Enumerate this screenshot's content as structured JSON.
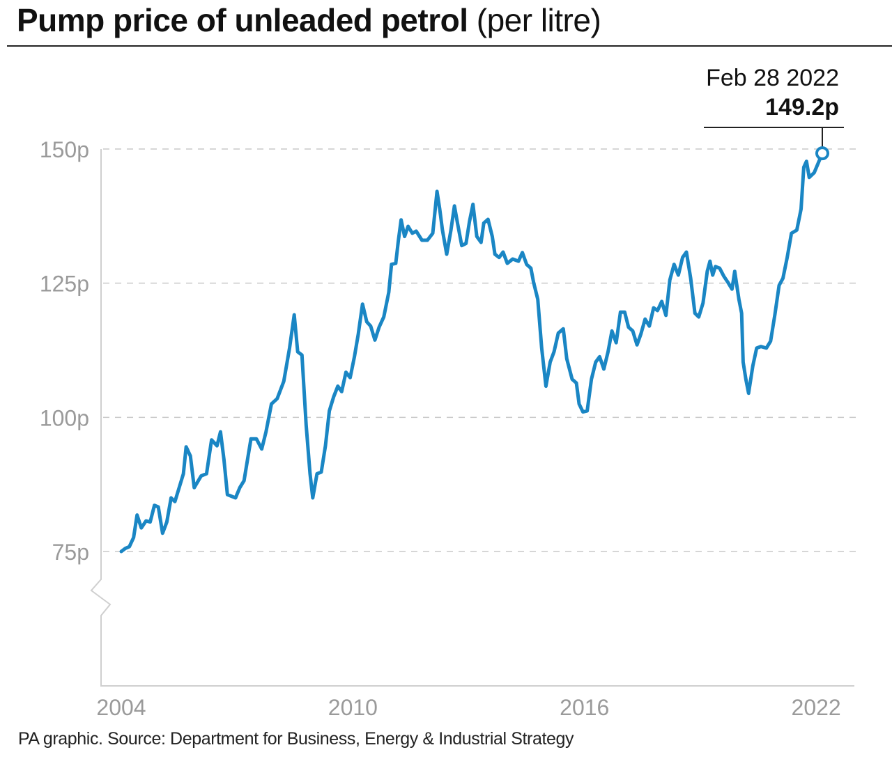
{
  "title": {
    "main": "Pump price of unleaded petrol",
    "sub": "(per litre)"
  },
  "source": "PA graphic. Source: Department for Business, Energy & Industrial Strategy",
  "chart_data": {
    "type": "line",
    "title": "Pump price of unleaded petrol (per litre)",
    "xlabel": "",
    "ylabel": "",
    "xlim": [
      2004,
      2022.16
    ],
    "ylim": [
      50,
      150
    ],
    "y_axis_break": true,
    "grid": "horizontal dashed",
    "line_color": "#1a86c4",
    "x_ticks": [
      2004,
      2010,
      2016,
      2022
    ],
    "x_tick_labels": [
      "2004",
      "2010",
      "2016",
      "2022"
    ],
    "y_ticks": [
      75,
      100,
      125,
      150
    ],
    "y_tick_labels": [
      "75p",
      "100p",
      "125p",
      "150p"
    ],
    "annotation": {
      "date": "Feb 28 2022",
      "value_label": "149.2p",
      "x": 2022.16,
      "y": 149.2
    },
    "x": [
      2004.0,
      2004.11,
      2004.21,
      2004.32,
      2004.41,
      2004.52,
      2004.64,
      2004.75,
      2004.86,
      2004.96,
      2005.07,
      2005.18,
      2005.29,
      2005.39,
      2005.5,
      2005.61,
      2005.68,
      2005.79,
      2005.89,
      2006.07,
      2006.21,
      2006.34,
      2006.48,
      2006.57,
      2006.66,
      2006.75,
      2006.96,
      2007.07,
      2007.18,
      2007.36,
      2007.5,
      2007.64,
      2007.75,
      2007.89,
      2008.04,
      2008.21,
      2008.36,
      2008.48,
      2008.57,
      2008.68,
      2008.79,
      2008.89,
      2008.96,
      2009.07,
      2009.18,
      2009.29,
      2009.39,
      2009.5,
      2009.61,
      2009.71,
      2009.82,
      2009.93,
      2010.04,
      2010.14,
      2010.25,
      2010.36,
      2010.46,
      2010.57,
      2010.68,
      2010.8,
      2010.93,
      2011.0,
      2011.11,
      2011.18,
      2011.25,
      2011.34,
      2011.43,
      2011.54,
      2011.64,
      2011.79,
      2011.93,
      2012.07,
      2012.18,
      2012.25,
      2012.32,
      2012.43,
      2012.54,
      2012.63,
      2012.71,
      2012.82,
      2012.93,
      2013.02,
      2013.11,
      2013.21,
      2013.32,
      2013.39,
      2013.5,
      2013.61,
      2013.68,
      2013.79,
      2013.89,
      2014.0,
      2014.14,
      2014.29,
      2014.39,
      2014.5,
      2014.61,
      2014.68,
      2014.79,
      2014.89,
      2015.0,
      2015.11,
      2015.21,
      2015.32,
      2015.45,
      2015.54,
      2015.68,
      2015.79,
      2015.86,
      2015.96,
      2016.07,
      2016.18,
      2016.29,
      2016.39,
      2016.5,
      2016.61,
      2016.71,
      2016.82,
      2016.93,
      2017.04,
      2017.14,
      2017.25,
      2017.36,
      2017.46,
      2017.57,
      2017.68,
      2017.79,
      2017.89,
      2018.0,
      2018.11,
      2018.21,
      2018.32,
      2018.43,
      2018.54,
      2018.64,
      2018.75,
      2018.86,
      2018.96,
      2019.07,
      2019.18,
      2019.25,
      2019.32,
      2019.39,
      2019.5,
      2019.61,
      2019.71,
      2019.82,
      2019.89,
      2020.0,
      2020.07,
      2020.11,
      2020.18,
      2020.25,
      2020.36,
      2020.46,
      2020.57,
      2020.71,
      2020.82,
      2020.93,
      2021.04,
      2021.14,
      2021.25,
      2021.36,
      2021.5,
      2021.61,
      2021.68,
      2021.75,
      2021.82,
      2021.95,
      2022.16
    ],
    "y": [
      75.0,
      75.6,
      75.9,
      77.6,
      81.8,
      79.4,
      80.7,
      80.5,
      83.6,
      83.3,
      78.4,
      80.5,
      85.0,
      84.3,
      86.9,
      89.5,
      94.5,
      92.8,
      86.9,
      89.1,
      89.5,
      95.8,
      94.7,
      97.3,
      92.1,
      85.6,
      85.0,
      86.9,
      88.2,
      96.0,
      96.0,
      94.1,
      97.3,
      102.5,
      103.5,
      106.7,
      112.9,
      119.1,
      112.2,
      111.6,
      98.6,
      89.5,
      85.0,
      89.5,
      89.8,
      94.7,
      101.2,
      103.8,
      105.8,
      104.8,
      108.4,
      107.4,
      111.3,
      115.5,
      121.1,
      117.8,
      117.0,
      114.4,
      116.8,
      118.7,
      123.3,
      128.5,
      128.7,
      133.0,
      136.8,
      133.7,
      135.6,
      134.3,
      134.7,
      133.0,
      133.0,
      134.3,
      142.1,
      138.8,
      134.9,
      130.4,
      134.9,
      139.4,
      136.2,
      132.0,
      132.4,
      136.5,
      139.7,
      133.7,
      132.6,
      136.2,
      136.9,
      133.7,
      130.4,
      129.8,
      130.8,
      128.7,
      129.5,
      129.1,
      130.7,
      128.5,
      127.8,
      125.2,
      122.0,
      112.9,
      105.8,
      110.3,
      112.2,
      115.7,
      116.5,
      110.9,
      107.1,
      106.4,
      102.5,
      101.0,
      101.2,
      107.1,
      110.3,
      111.3,
      109.0,
      112.2,
      116.1,
      113.9,
      119.6,
      119.6,
      116.8,
      116.1,
      113.5,
      115.5,
      118.3,
      117.0,
      120.4,
      119.9,
      121.6,
      119.0,
      125.6,
      128.5,
      126.5,
      129.8,
      130.8,
      125.9,
      119.4,
      118.7,
      121.3,
      127.2,
      129.1,
      126.5,
      128.1,
      127.8,
      126.3,
      125.2,
      123.9,
      127.2,
      122.0,
      119.4,
      110.3,
      107.1,
      104.5,
      109.6,
      112.9,
      113.2,
      112.9,
      114.2,
      119.1,
      124.6,
      125.9,
      129.8,
      134.3,
      134.9,
      138.8,
      146.6,
      147.7,
      144.7,
      145.6,
      149.2
    ]
  }
}
